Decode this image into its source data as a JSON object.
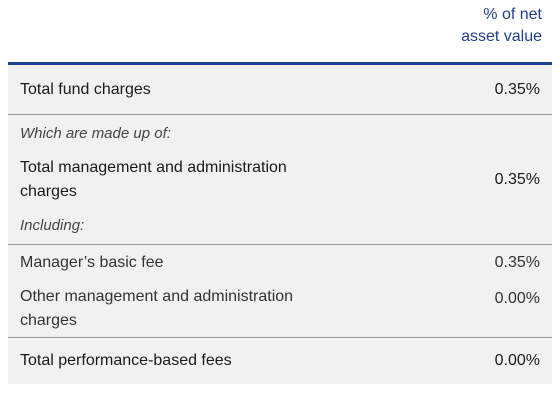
{
  "header": {
    "line1": "% of net",
    "line2": "asset value"
  },
  "rows": [
    {
      "label": "Total fund charges",
      "value": "0.35%"
    },
    {
      "label": "Which are made up of:",
      "value": ""
    },
    {
      "label_line1": "Total management and administration",
      "label_line2": "charges",
      "value": "0.35%"
    },
    {
      "label": "Including:",
      "value": ""
    },
    {
      "label": "Manager’s basic fee",
      "value": "0.35%"
    },
    {
      "label_line1": "Other management and administration",
      "label_line2": "charges",
      "value": "0.00%"
    },
    {
      "label": "Total performance-based fees",
      "value": "0.00%"
    }
  ]
}
